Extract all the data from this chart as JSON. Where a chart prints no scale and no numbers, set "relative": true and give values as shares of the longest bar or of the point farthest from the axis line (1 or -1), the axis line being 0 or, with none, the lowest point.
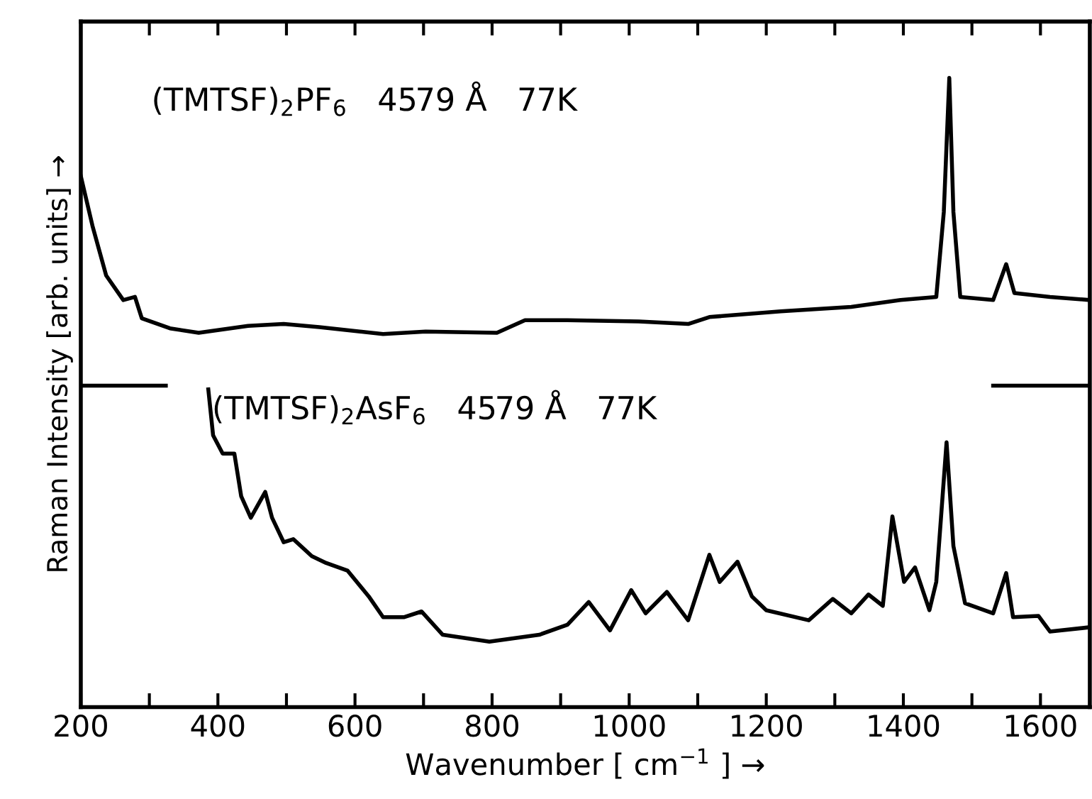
{
  "chart_data": {
    "type": "line",
    "relative": true,
    "xlabel": "Wavenumber [ cm$^{−1}$ ] →",
    "ylabel": "Raman Intensity [arb. units] →",
    "annotations": [
      "(TMTSF)$_{2}$PF$_{6}$   4579 Å   77K",
      "(TMTSF)$_{2}$AsF$_{6}$   4579 Å   77K"
    ],
    "xlim": [
      200,
      1672
    ],
    "xticks": [
      200,
      {
        "value": 300,
        "label": null
      },
      400,
      {
        "value": 500,
        "label": null
      },
      600,
      {
        "value": 700,
        "label": null
      },
      800,
      {
        "value": 900,
        "label": null
      },
      1000,
      {
        "value": 1100,
        "label": null
      },
      1200,
      {
        "value": 1300,
        "label": null
      },
      1400,
      {
        "value": 1500,
        "label": null
      },
      1600
    ],
    "series": [
      {
        "color": "#000000",
        "x": [
          200,
          217,
          237,
          262,
          279,
          289,
          330,
          372,
          444,
          496,
          548,
          641,
          703,
          807,
          848,
          910,
          1014,
          1086,
          1117,
          1221,
          1324,
          1396,
          1448,
          1459,
          1467,
          1473,
          1483,
          1531,
          1550,
          1562,
          1614,
          1672
        ],
        "values": [
          0.844,
          0.765,
          0.686,
          0.647,
          0.652,
          0.618,
          0.602,
          0.595,
          0.606,
          0.609,
          0.604,
          0.593,
          0.597,
          0.595,
          0.615,
          0.615,
          0.613,
          0.609,
          0.62,
          0.629,
          0.636,
          0.647,
          0.652,
          0.787,
          1,
          0.787,
          0.652,
          0.647,
          0.704,
          0.658,
          0.652,
          0.647
        ]
      },
      {
        "color": "#000000",
        "x": [
          386,
          393,
          407,
          424,
          434,
          448,
          469,
          479,
          496,
          510,
          537,
          558,
          589,
          620,
          641,
          672,
          697,
          728,
          796,
          869,
          910,
          941,
          972,
          1003,
          1024,
          1055,
          1086,
          1117,
          1132,
          1158,
          1179,
          1200,
          1262,
          1297,
          1324,
          1349,
          1370,
          1384,
          1401,
          1417,
          1438,
          1448,
          1463,
          1473,
          1490,
          1531,
          1550,
          1560,
          1597,
          1614,
          1672
        ],
        "values": [
          0.505,
          0.432,
          0.403,
          0.403,
          0.335,
          0.301,
          0.342,
          0.301,
          0.262,
          0.267,
          0.24,
          0.229,
          0.217,
          0.176,
          0.143,
          0.143,
          0.152,
          0.115,
          0.104,
          0.115,
          0.131,
          0.167,
          0.122,
          0.186,
          0.149,
          0.183,
          0.138,
          0.242,
          0.199,
          0.231,
          0.176,
          0.154,
          0.138,
          0.172,
          0.149,
          0.179,
          0.161,
          0.303,
          0.199,
          0.222,
          0.154,
          0.199,
          0.421,
          0.256,
          0.165,
          0.149,
          0.213,
          0.143,
          0.145,
          0.12,
          0.127
        ]
      },
      {
        "color": "#000000",
        "x": [
          200,
          324,
          1000,
          1531,
          1672
        ],
        "values": [
          0.511,
          0.511,
          null,
          0.511,
          0.511
        ]
      }
    ]
  }
}
